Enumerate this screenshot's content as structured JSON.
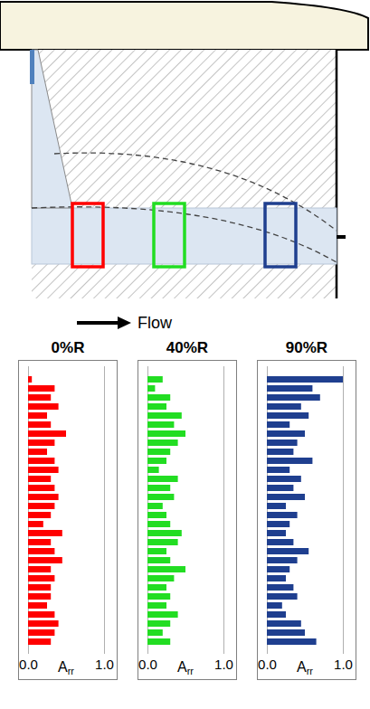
{
  "chart_data": [
    {
      "type": "bar",
      "orientation": "horizontal",
      "title": "0%R",
      "x_label": "Arr",
      "color": "#ff0000",
      "categories": [
        null,
        null,
        null,
        null,
        null,
        null,
        null,
        null,
        null,
        null,
        null,
        null,
        null,
        null,
        null,
        null,
        null,
        null,
        null,
        null,
        null,
        null,
        null,
        null,
        null,
        null,
        null,
        null,
        null,
        null
      ],
      "values": [
        0.05,
        0.35,
        0.3,
        0.4,
        0.25,
        0.3,
        0.5,
        0.35,
        0.25,
        0.35,
        0.4,
        0.3,
        0.35,
        0.4,
        0.35,
        0.3,
        0.2,
        0.45,
        0.3,
        0.35,
        0.45,
        0.3,
        0.35,
        0.3,
        0.3,
        0.25,
        0.35,
        0.4,
        0.35,
        0.3
      ],
      "xlim": [
        0,
        1
      ],
      "xticks": [
        0,
        1
      ],
      "grid": true,
      "tick_labels": "x"
    },
    {
      "type": "bar",
      "orientation": "horizontal",
      "title": "40%R",
      "x_label": "Arr",
      "color": "#22dd22",
      "categories": [
        null,
        null,
        null,
        null,
        null,
        null,
        null,
        null,
        null,
        null,
        null,
        null,
        null,
        null,
        null,
        null,
        null,
        null,
        null,
        null,
        null,
        null,
        null,
        null,
        null,
        null,
        null,
        null,
        null,
        null
      ],
      "values": [
        0.2,
        0.1,
        0.3,
        0.25,
        0.45,
        0.35,
        0.5,
        0.4,
        0.3,
        0.25,
        0.15,
        0.4,
        0.3,
        0.35,
        0.2,
        0.25,
        0.3,
        0.45,
        0.4,
        0.25,
        0.3,
        0.5,
        0.35,
        0.25,
        0.3,
        0.25,
        0.4,
        0.3,
        0.2,
        0.3
      ],
      "xlim": [
        0,
        1
      ],
      "xticks": [
        0,
        1
      ],
      "grid": true,
      "tick_labels": "x"
    },
    {
      "type": "bar",
      "orientation": "horizontal",
      "title": "90%R",
      "x_label": "Arr",
      "color": "#1f3f8f",
      "categories": [
        null,
        null,
        null,
        null,
        null,
        null,
        null,
        null,
        null,
        null,
        null,
        null,
        null,
        null,
        null,
        null,
        null,
        null,
        null,
        null,
        null,
        null,
        null,
        null,
        null,
        null,
        null,
        null,
        null,
        null
      ],
      "values": [
        1.0,
        0.6,
        0.7,
        0.45,
        0.55,
        0.3,
        0.5,
        0.4,
        0.35,
        0.6,
        0.3,
        0.45,
        0.35,
        0.5,
        0.25,
        0.4,
        0.3,
        0.25,
        0.35,
        0.55,
        0.4,
        0.3,
        0.25,
        0.35,
        0.4,
        0.2,
        0.25,
        0.45,
        0.5,
        0.65
      ],
      "xlim": [
        0,
        1
      ],
      "xticks": [
        0,
        1
      ],
      "grid": true,
      "tick_labels": "x"
    }
  ],
  "diagram": {
    "flow_label": "Flow"
  }
}
